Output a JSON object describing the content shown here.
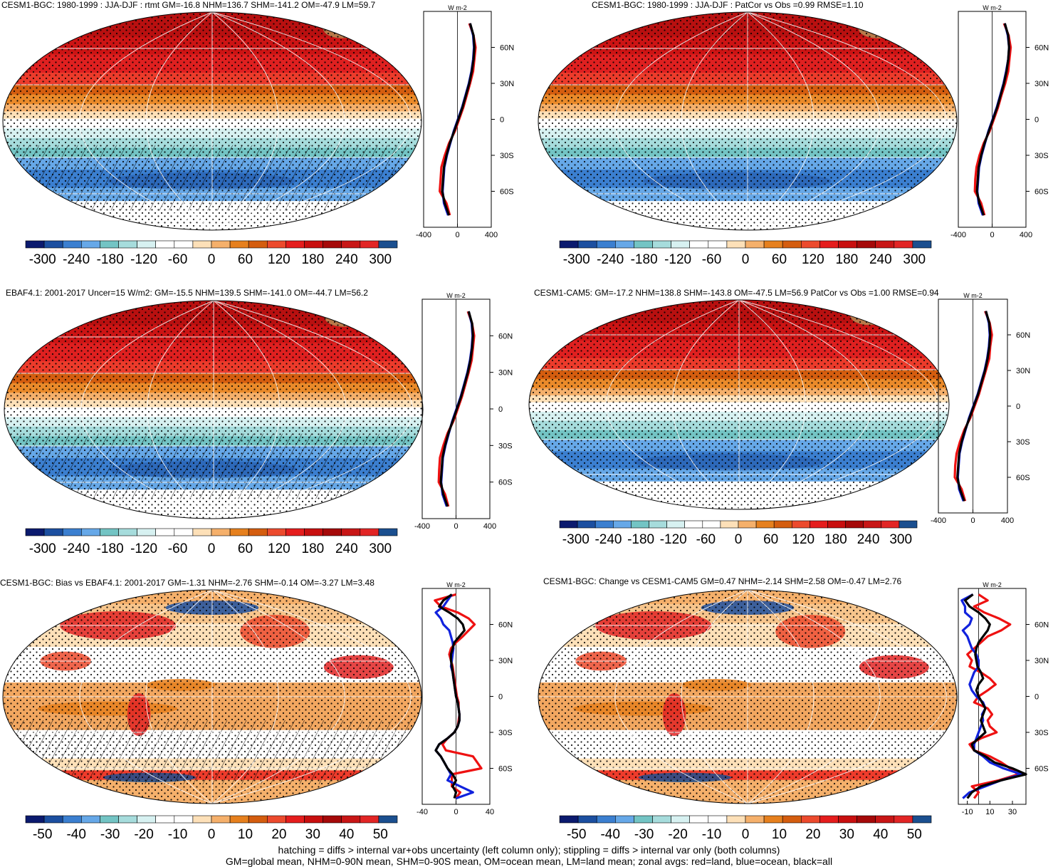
{
  "footer": {
    "line1": "hatching = diffs > internal var+obs uncertainty (left column only); stippling = diffs > internal var only (both columns)",
    "line2": "GM=global mean, NHM=0-90N mean, SHM=0-90S mean, OM=ocean mean, LM=land mean; zonal avgs: red=land, blue=ocean, black=all"
  },
  "colors": {
    "land": "#ee1111",
    "ocean": "#1122dd",
    "all": "#000000"
  },
  "chart_data": [
    {
      "type": "heatmap",
      "title": "CESM1-BGC: 1980-1999 : JJA-DJF : rtmt GM=-16.8 NHM=136.7 SHM=-141.2 OM=-47.9 LM=59.7",
      "unit": "W m-2",
      "colorbar_labels": [
        "-300",
        "-240",
        "-180",
        "-120",
        "-60",
        "0",
        "60",
        "120",
        "180",
        "240",
        "300"
      ],
      "lat_ticks": [
        "60N",
        "30N",
        "0",
        "30S",
        "60S"
      ],
      "zonal_xticks": [
        "-400",
        "0",
        "400"
      ],
      "zonal_xlim": [
        -400,
        400
      ],
      "hatching": true,
      "stippling": true,
      "zonal_lat": [
        80,
        70,
        60,
        50,
        40,
        30,
        20,
        10,
        0,
        -10,
        -20,
        -30,
        -40,
        -50,
        -60,
        -70,
        -80
      ],
      "zonal_all": [
        150,
        190,
        200,
        190,
        170,
        140,
        100,
        60,
        10,
        -40,
        -90,
        -130,
        -160,
        -170,
        -180,
        -150,
        -100
      ],
      "zonal_land": [
        140,
        190,
        215,
        200,
        185,
        150,
        110,
        70,
        20,
        -30,
        -100,
        -150,
        -190,
        -200,
        -210,
        -130,
        -90
      ],
      "zonal_ocean": [
        150,
        185,
        195,
        185,
        165,
        135,
        95,
        55,
        5,
        -45,
        -85,
        -125,
        -155,
        -165,
        -175,
        -160,
        -110
      ]
    },
    {
      "type": "heatmap",
      "title": "CESM1-BGC: 1980-1999 : JJA-DJF : PatCor vs Obs =0.99 RMSE=1.10",
      "unit": "W m-2",
      "colorbar_labels": [
        "-300",
        "-240",
        "-180",
        "-120",
        "-60",
        "0",
        "60",
        "120",
        "180",
        "240",
        "300"
      ],
      "lat_ticks": [
        "60N",
        "30N",
        "0",
        "30S",
        "60S"
      ],
      "zonal_xticks": [
        "-400",
        "0",
        "400"
      ],
      "zonal_xlim": [
        -400,
        400
      ],
      "hatching": false,
      "stippling": true,
      "zonal_lat": [
        80,
        70,
        60,
        50,
        40,
        30,
        20,
        10,
        0,
        -10,
        -20,
        -30,
        -40,
        -50,
        -60,
        -70,
        -80
      ],
      "zonal_all": [
        150,
        190,
        200,
        190,
        170,
        140,
        100,
        60,
        10,
        -40,
        -90,
        -130,
        -160,
        -170,
        -180,
        -150,
        -100
      ],
      "zonal_land": [
        140,
        195,
        220,
        205,
        190,
        155,
        110,
        70,
        20,
        -30,
        -100,
        -150,
        -185,
        -200,
        -205,
        -130,
        -90
      ],
      "zonal_ocean": [
        150,
        185,
        200,
        190,
        165,
        135,
        95,
        55,
        5,
        -45,
        -85,
        -125,
        -155,
        -165,
        -175,
        -160,
        -110
      ]
    },
    {
      "type": "heatmap",
      "title": "EBAF4.1: 2001-2017 Uncer=15 W/m2: GM=-15.5 NHM=139.5 SHM=-141.0 OM=-44.7 LM=56.2",
      "unit": "W m-2",
      "colorbar_labels": [
        "-300",
        "-240",
        "-180",
        "-120",
        "-60",
        "0",
        "60",
        "120",
        "180",
        "240",
        "300"
      ],
      "lat_ticks": [
        "60N",
        "30N",
        "0",
        "30S",
        "60S"
      ],
      "zonal_xticks": [
        "-400",
        "0",
        "400"
      ],
      "zonal_xlim": [
        -400,
        400
      ],
      "hatching": true,
      "stippling": true,
      "zonal_lat": [
        80,
        70,
        60,
        50,
        40,
        30,
        20,
        10,
        0,
        -10,
        -20,
        -30,
        -40,
        -50,
        -60,
        -70,
        -80
      ],
      "zonal_all": [
        150,
        190,
        200,
        190,
        170,
        140,
        100,
        60,
        10,
        -40,
        -90,
        -130,
        -160,
        -170,
        -180,
        -150,
        -100
      ],
      "zonal_land": [
        140,
        190,
        215,
        200,
        185,
        150,
        110,
        70,
        20,
        -30,
        -100,
        -150,
        -190,
        -200,
        -205,
        -130,
        -90
      ],
      "zonal_ocean": [
        150,
        185,
        195,
        185,
        165,
        135,
        95,
        55,
        5,
        -45,
        -85,
        -125,
        -155,
        -165,
        -175,
        -160,
        -110
      ]
    },
    {
      "type": "heatmap",
      "title": "CESM1-CAM5: GM=-17.2 NHM=138.8 SHM=-143.8 OM=-47.5 LM=56.9 PatCor vs Obs =1.00 RMSE=0.94",
      "unit": "W m-2",
      "colorbar_labels": [
        "-300",
        "-240",
        "-180",
        "-120",
        "-60",
        "0",
        "60",
        "120",
        "180",
        "240",
        "300"
      ],
      "lat_ticks": [
        "60N",
        "30N",
        "0",
        "30S",
        "60S"
      ],
      "zonal_xticks": [
        "-400",
        "0",
        "400"
      ],
      "zonal_xlim": [
        -400,
        400
      ],
      "hatching": false,
      "stippling": true,
      "zonal_lat": [
        80,
        70,
        60,
        50,
        40,
        30,
        20,
        10,
        0,
        -10,
        -20,
        -30,
        -40,
        -50,
        -60,
        -70,
        -80
      ],
      "zonal_all": [
        150,
        190,
        200,
        190,
        170,
        140,
        100,
        60,
        10,
        -40,
        -90,
        -130,
        -160,
        -170,
        -180,
        -150,
        -100
      ],
      "zonal_land": [
        140,
        195,
        220,
        200,
        190,
        150,
        110,
        70,
        20,
        -30,
        -100,
        -150,
        -190,
        -205,
        -210,
        -130,
        -90
      ],
      "zonal_ocean": [
        150,
        185,
        195,
        185,
        165,
        135,
        95,
        55,
        5,
        -45,
        -85,
        -125,
        -155,
        -165,
        -175,
        -160,
        -110
      ]
    },
    {
      "type": "heatmap",
      "title": "CESM1-BGC: Bias vs EBAF4.1: 2001-2017 GM=-1.31 NHM=-2.76 SHM=-0.14 OM=-3.27 LM=3.48",
      "unit": "W m-2",
      "colorbar_labels": [
        "-50",
        "-40",
        "-30",
        "-20",
        "-10",
        "0",
        "10",
        "20",
        "30",
        "40",
        "50"
      ],
      "lat_ticks": [
        "60N",
        "30N",
        "0",
        "30S",
        "60S"
      ],
      "zonal_xticks": [
        "-40",
        "0",
        "40"
      ],
      "zonal_xlim": [
        -40,
        40
      ],
      "hatching": true,
      "stippling": true,
      "zonal_lat": [
        85,
        80,
        75,
        70,
        65,
        60,
        55,
        50,
        45,
        40,
        35,
        30,
        25,
        20,
        15,
        10,
        5,
        0,
        -5,
        -10,
        -15,
        -20,
        -25,
        -30,
        -35,
        -40,
        -45,
        -50,
        -55,
        -60,
        -65,
        -70,
        -75,
        -80,
        -85
      ],
      "zonal_all": [
        -5,
        -15,
        -20,
        -8,
        2,
        8,
        10,
        4,
        -2,
        -4,
        -6,
        -6,
        -5,
        -4,
        -3,
        -2,
        -1,
        0,
        2,
        3,
        4,
        4,
        2,
        -2,
        -10,
        -20,
        -24,
        -18,
        -14,
        -10,
        -4,
        0,
        -4,
        0,
        -2
      ],
      "zonal_land": [
        0,
        -25,
        -18,
        2,
        15,
        22,
        15,
        8,
        0,
        -6,
        -8,
        -6,
        -4,
        -3,
        -2,
        -1,
        0,
        1,
        3,
        3,
        4,
        3,
        2,
        -2,
        -10,
        -16,
        -12,
        20,
        25,
        30,
        -5,
        -5,
        -5,
        5,
        0
      ],
      "zonal_ocean": [
        -5,
        -10,
        -15,
        -24,
        -18,
        -15,
        -8,
        -6,
        -4,
        -3,
        -4,
        -5,
        -6,
        -4,
        -3,
        -2,
        -1,
        0,
        2,
        3,
        4,
        4,
        2,
        -2,
        -10,
        -20,
        -24,
        -18,
        -14,
        -10,
        -6,
        -10,
        5,
        20,
        0
      ]
    },
    {
      "type": "heatmap",
      "title": "CESM1-BGC: Change vs CESM1-CAM5 GM=0.47 NHM=-2.14 SHM=2.58 OM=-0.47 LM=2.76",
      "unit": "W m-2",
      "colorbar_labels": [
        "-50",
        "-40",
        "-30",
        "-20",
        "-10",
        "0",
        "10",
        "20",
        "30",
        "40",
        "50"
      ],
      "lat_ticks": [
        "60N",
        "30N",
        "0",
        "30S",
        "60S"
      ],
      "zonal_xticks": [
        "-10",
        "10",
        "30"
      ],
      "zonal_xlim": [
        -18,
        42
      ],
      "hatching": false,
      "stippling": true,
      "zonal_lat": [
        85,
        80,
        75,
        70,
        65,
        60,
        55,
        50,
        45,
        40,
        35,
        30,
        25,
        20,
        15,
        10,
        5,
        0,
        -5,
        -10,
        -15,
        -20,
        -25,
        -30,
        -35,
        -40,
        -45,
        -50,
        -55,
        -60,
        -65,
        -70,
        -75,
        -80,
        -85
      ],
      "zonal_all": [
        -5,
        -12,
        -8,
        0,
        6,
        10,
        8,
        4,
        0,
        -2,
        -3,
        -2,
        -1,
        2,
        4,
        0,
        -2,
        0,
        3,
        6,
        4,
        2,
        4,
        6,
        0,
        -6,
        -4,
        6,
        14,
        30,
        42,
        20,
        2,
        -6,
        -10
      ],
      "zonal_land": [
        0,
        8,
        -4,
        5,
        18,
        28,
        20,
        8,
        2,
        -4,
        -10,
        -6,
        -8,
        2,
        10,
        15,
        8,
        0,
        -4,
        8,
        12,
        8,
        10,
        16,
        2,
        -8,
        -4,
        10,
        20,
        28,
        35,
        18,
        -6,
        0,
        -4
      ],
      "zonal_ocean": [
        -5,
        -15,
        -12,
        -12,
        -6,
        -8,
        -14,
        -10,
        -8,
        -6,
        -2,
        0,
        0,
        -4,
        -6,
        -8,
        -6,
        -2,
        4,
        6,
        3,
        4,
        2,
        0,
        -2,
        -4,
        -4,
        4,
        10,
        22,
        38,
        20,
        6,
        -8,
        -14
      ]
    }
  ]
}
